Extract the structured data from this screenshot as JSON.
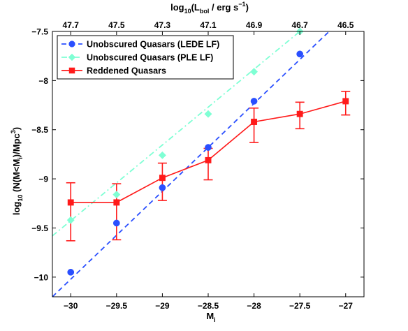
{
  "chart_data": {
    "type": "line",
    "xlabel": "M",
    "xlabel_sub": "i",
    "ylabel": "log10 (N(M<Mi)/Mpc3)",
    "ylabel_parts": {
      "pre": "log",
      "sub1": "10",
      "mid": " (N(M<M",
      "sub2": "i",
      "mid2": ")/Mpc",
      "sup": "3",
      "post": ")"
    },
    "top_xlabel": "log10(Lbol / erg s-1)",
    "top_xlabel_parts": {
      "pre": "log",
      "sub1": "10",
      "mid": "(L",
      "sub2": "bol",
      "mid2": " / erg s",
      "sup": "−1",
      "post": ")"
    },
    "xlim": [
      -30.2,
      -26.8
    ],
    "ylim": [
      -10.2,
      -7.5
    ],
    "x_ticks": [
      -30,
      -29.5,
      -29,
      -28.5,
      -28,
      -27.5,
      -27
    ],
    "x_tick_labels": [
      "−30",
      "−29.5",
      "−29",
      "−28.5",
      "−28",
      "−27.5",
      "−27"
    ],
    "y_ticks": [
      -10,
      -9.5,
      -9,
      -8.5,
      -8,
      -7.5
    ],
    "y_tick_labels": [
      "−10",
      "−9.5",
      "−9",
      "−8.5",
      "−8",
      "−7.5"
    ],
    "top_ticks": [
      -30,
      -29.5,
      -29,
      -28.5,
      -28,
      -27.5,
      -27
    ],
    "top_tick_labels": [
      "47.7",
      "47.5",
      "47.3",
      "47.1",
      "46.9",
      "46.7",
      "46.5"
    ],
    "legend_position": "top-left",
    "grid": false,
    "series": [
      {
        "name": "Unobscured Quasars (LEDE LF)",
        "color": "#2a4fff",
        "marker": "circle",
        "line_style": "dashed",
        "x": [
          -30,
          -29.5,
          -29,
          -28.5,
          -28,
          -27.5
        ],
        "y": [
          -9.95,
          -9.45,
          -9.09,
          -8.68,
          -8.21,
          -7.73
        ],
        "fit_line": {
          "x": [
            -30.2,
            -27.18
          ],
          "y": [
            -10.2,
            -7.5
          ]
        }
      },
      {
        "name": "Unobscured Quasars (PLE LF)",
        "color": "#7fffd4",
        "marker": "diamond",
        "line_style": "dash-dot",
        "x": [
          -30,
          -29.5,
          -29,
          -28.5,
          -28,
          -27.5
        ],
        "y": [
          -9.42,
          -9.16,
          -8.76,
          -8.34,
          -7.91,
          -7.5
        ],
        "fit_line": {
          "x": [
            -30.2,
            -27.5
          ],
          "y": [
            -9.58,
            -7.5
          ]
        }
      },
      {
        "name": "Reddened Quasars",
        "color": "#ff1a1a",
        "marker": "square",
        "line_style": "solid",
        "x": [
          -30,
          -29.5,
          -29,
          -28.5,
          -28,
          -27.5,
          -27
        ],
        "y": [
          -9.24,
          -9.24,
          -8.99,
          -8.81,
          -8.42,
          -8.34,
          -8.21
        ],
        "err_low": [
          -9.63,
          -9.62,
          -9.22,
          -9.01,
          -8.63,
          -8.49,
          -8.35
        ],
        "err_high": [
          -9.04,
          -9.05,
          -8.84,
          -8.69,
          -8.28,
          -8.22,
          -8.11
        ]
      }
    ]
  }
}
